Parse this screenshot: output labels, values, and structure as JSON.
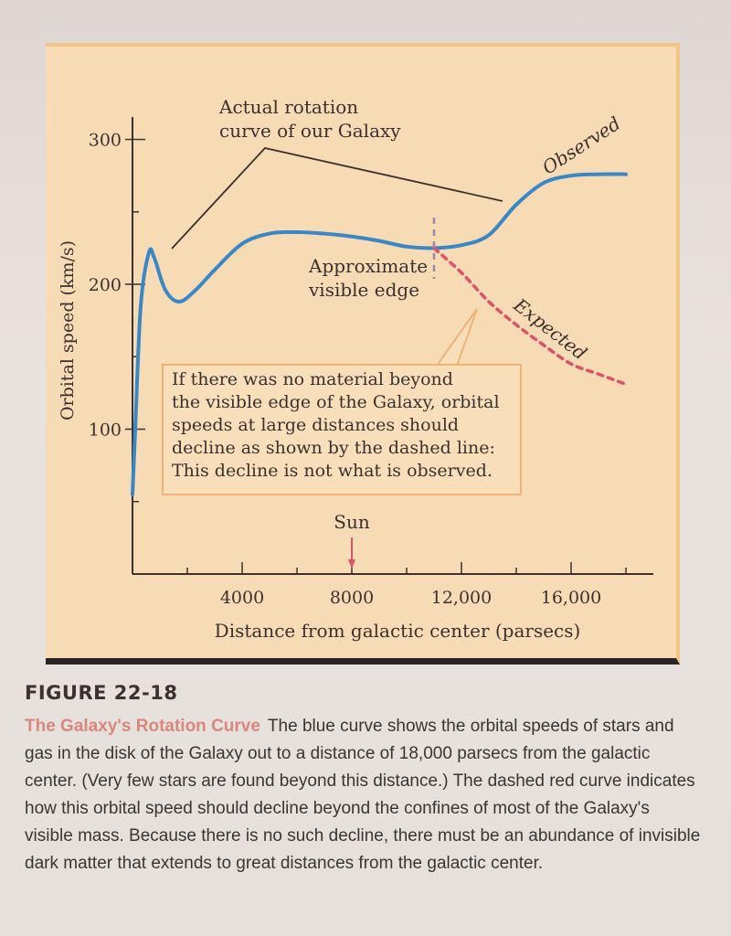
{
  "figure": {
    "number_label": "FIGURE 22-18",
    "caption_title": "The Galaxy's Rotation Curve",
    "caption_body": "The blue curve shows the orbital speeds of stars and gas in the disk of the Galaxy out to a distance of 18,000 parsecs from the galactic center. (Very few stars are found beyond this distance.) The dashed red curve indicates how this orbital speed should decline beyond the confines of most of the Galaxy's visible mass. Because there is no such decline, there must be an abundance of invisible dark matter that extends to great distances from the galactic center."
  },
  "chart_data": {
    "type": "line",
    "xlabel": "Distance from galactic center (parsecs)",
    "ylabel": "Orbital speed (km/s)",
    "xlim": [
      0,
      19000
    ],
    "ylim": [
      0,
      330
    ],
    "x_ticks": [
      4000,
      8000,
      12000,
      16000
    ],
    "x_tick_labels": [
      "4000",
      "8000",
      "12,000",
      "16,000"
    ],
    "y_ticks": [
      100,
      200,
      300
    ],
    "y_tick_labels": [
      "100",
      "200",
      "300"
    ],
    "grid": false,
    "series": [
      {
        "name": "Observed",
        "style": "solid",
        "color": "#3a87c6",
        "x": [
          0,
          100,
          300,
          600,
          800,
          1200,
          1700,
          2300,
          3000,
          4000,
          5000,
          6000,
          7000,
          8000,
          9000,
          10000,
          11000,
          12000,
          13000,
          14000,
          15000,
          16000,
          17000,
          18000
        ],
        "y": [
          55,
          100,
          185,
          222,
          218,
          196,
          188,
          196,
          210,
          228,
          235,
          236,
          235,
          233,
          230,
          226,
          225,
          227,
          234,
          255,
          270,
          275,
          276,
          276
        ]
      },
      {
        "name": "Expected",
        "style": "dashed",
        "color": "#d9536b",
        "x": [
          11000,
          12000,
          13000,
          14000,
          15000,
          16000,
          17000,
          18000
        ],
        "y": [
          225,
          208,
          188,
          172,
          158,
          145,
          138,
          131
        ]
      }
    ],
    "annotations": {
      "actual_rotation": "Actual rotation\ncurve of our Galaxy",
      "visible_edge": "Approximate\nvisible edge",
      "callout": "If there was no material beyond\nthe visible edge of the Galaxy, orbital\nspeeds at large distances should\ndecline as shown by the dashed line:\nThis decline is not what is observed.",
      "sun_label": "Sun",
      "sun_x": 8000,
      "visible_edge_x": 11000
    }
  }
}
